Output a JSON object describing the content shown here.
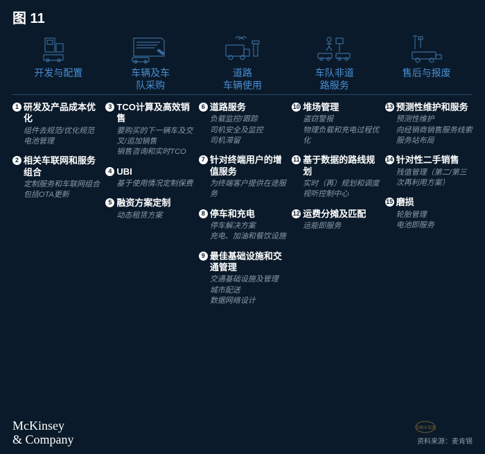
{
  "figure_label": "图 11",
  "stages": [
    {
      "label": "开发与配置"
    },
    {
      "label": "车辆及车队采购"
    },
    {
      "label": "道路车辆使用"
    },
    {
      "label": "车队非道路服务"
    },
    {
      "label": "售后与报废"
    }
  ],
  "columns": [
    [
      {
        "num": "1",
        "title": "研发及产品成本优化",
        "desc": [
          "组件去规范/优化规范",
          "电池管理"
        ]
      },
      {
        "num": "2",
        "title": "相关车联网和服务组合",
        "desc": [
          "定制服务和车联网组合包括OTA更新"
        ]
      }
    ],
    [
      {
        "num": "3",
        "title": "TCO计算及高效销售",
        "desc": [
          "要购买的下一辆车及交叉/追加销售",
          "销售咨询和实时TCO"
        ]
      },
      {
        "num": "4",
        "title": "UBI",
        "desc": [
          "基于使用情况定制保费"
        ]
      },
      {
        "num": "5",
        "title": "融资方案定制",
        "desc": [
          "动态租赁方案"
        ]
      }
    ],
    [
      {
        "num": "6",
        "title": "道路服务",
        "desc": [
          "负载监控/跟踪",
          "司机安全及监控",
          "司机滞留"
        ]
      },
      {
        "num": "7",
        "title": "针对终端用户的增值服务",
        "desc": [
          "为终端客户提供在途服务"
        ]
      },
      {
        "num": "8",
        "title": "停车和充电",
        "desc": [
          "停车解决方案",
          "充电、加油和餐饮设施"
        ]
      },
      {
        "num": "9",
        "title": "最佳基础设施和交通管理",
        "desc": [
          "交通基础设施及管理",
          "城市配送",
          "数据网络设计"
        ]
      }
    ],
    [
      {
        "num": "10",
        "title": "堆场管理",
        "desc": [
          "盗窃警报",
          "物理负载和充电过程优化"
        ]
      },
      {
        "num": "11",
        "title": "基于数据的路线规划",
        "desc": [
          "实时（再）规划和调度",
          "视听控制中心"
        ]
      },
      {
        "num": "12",
        "title": "运费分摊及匹配",
        "desc": [
          "运能即服务"
        ]
      }
    ],
    [
      {
        "num": "13",
        "title": "预测性维护和服务",
        "desc": [
          "预测性维护",
          "向经销商销售服务线索",
          "服务站布局"
        ]
      },
      {
        "num": "14",
        "title": "针对性二手销售",
        "desc": [
          "残值管理（第二/第三次再利用方案）"
        ]
      },
      {
        "num": "15",
        "title": "磨损",
        "desc": [
          "轮胎管理",
          "电池即服务"
        ]
      }
    ]
  ],
  "footer": "McKinsey\n& Company",
  "source": "资料来源：麦肯锡",
  "watermark": "中国卡车网",
  "colors": {
    "bg": "#0a1a2a",
    "accent": "#4a8fd4",
    "icon_stroke": "#3a6a9a",
    "desc_text": "#8a9aaa",
    "white": "#ffffff"
  }
}
